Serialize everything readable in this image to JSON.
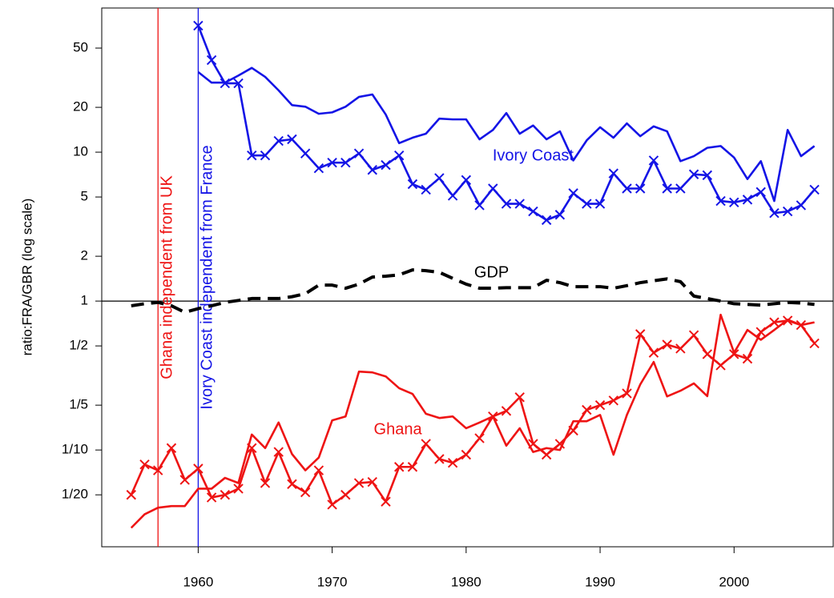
{
  "chart_data": {
    "type": "line",
    "y_label": "ratio:FRA/GBR (log scale)",
    "log_y": true,
    "x": [
      1955,
      1956,
      1957,
      1958,
      1959,
      1960,
      1961,
      1962,
      1963,
      1964,
      1965,
      1966,
      1967,
      1968,
      1969,
      1970,
      1971,
      1972,
      1973,
      1974,
      1975,
      1976,
      1977,
      1978,
      1979,
      1980,
      1981,
      1982,
      1983,
      1984,
      1985,
      1986,
      1987,
      1988,
      1989,
      1990,
      1991,
      1992,
      1993,
      1994,
      1995,
      1996,
      1997,
      1998,
      1999,
      2000,
      2001,
      2002,
      2003,
      2004,
      2005,
      2006
    ],
    "series": [
      {
        "color": "#1414e6",
        "marker": "x",
        "line_style": "solid",
        "values": [
          null,
          null,
          null,
          null,
          null,
          70.7,
          41.5,
          29,
          29,
          9.5,
          9.5,
          11.9,
          12.2,
          9.8,
          7.8,
          8.5,
          8.5,
          9.8,
          7.6,
          8.2,
          9.5,
          6.1,
          5.6,
          6.7,
          5.1,
          6.5,
          4.4,
          5.7,
          4.5,
          4.5,
          4.0,
          3.5,
          3.8,
          5.3,
          4.5,
          4.5,
          7.2,
          5.7,
          5.7,
          8.8,
          5.7,
          5.7,
          7.1,
          7.0,
          4.7,
          4.6,
          4.8,
          5.4,
          3.9,
          4.0,
          4.4,
          5.6
        ]
      },
      {
        "color": "#1414e6",
        "marker": "none",
        "line_style": "solid",
        "values": [
          null,
          null,
          null,
          null,
          null,
          34.5,
          29.3,
          29.3,
          32.7,
          36.8,
          32,
          26,
          20.7,
          20.2,
          18.1,
          18.5,
          20.2,
          23.5,
          24.4,
          17.9,
          11.5,
          12.5,
          13.3,
          16.8,
          16.6,
          16.6,
          12.2,
          14.1,
          18.3,
          13.3,
          15.1,
          12.2,
          13.8,
          8.8,
          12,
          14.7,
          12.5,
          15.6,
          12.8,
          14.9,
          13.8,
          8.7,
          9.4,
          10.7,
          11,
          9.2,
          6.6,
          8.7,
          4.7,
          14.1,
          9.4,
          11
        ]
      },
      {
        "color": "#000000",
        "marker": "none",
        "line_style": "dashed",
        "values": [
          0.93,
          0.96,
          0.98,
          0.93,
          0.84,
          0.89,
          0.93,
          0.98,
          1.01,
          1.04,
          1.04,
          1.04,
          1.07,
          1.12,
          1.28,
          1.28,
          1.22,
          1.3,
          1.45,
          1.47,
          1.5,
          1.62,
          1.6,
          1.56,
          1.42,
          1.3,
          1.22,
          1.22,
          1.23,
          1.23,
          1.23,
          1.38,
          1.33,
          1.25,
          1.25,
          1.25,
          1.22,
          1.27,
          1.33,
          1.37,
          1.41,
          1.35,
          1.08,
          1.04,
          1.0,
          0.96,
          0.95,
          0.94,
          0.96,
          0.98,
          0.97,
          0.95
        ]
      },
      {
        "color": "#ee1414",
        "marker": "x",
        "line_style": "solid",
        "values": [
          0.05,
          0.08,
          0.073,
          0.103,
          0.063,
          0.075,
          0.048,
          0.05,
          0.055,
          0.103,
          0.06,
          0.097,
          0.059,
          0.052,
          0.073,
          0.043,
          0.05,
          0.06,
          0.061,
          0.045,
          0.077,
          0.077,
          0.11,
          0.087,
          0.082,
          0.093,
          0.12,
          0.168,
          0.183,
          0.226,
          0.11,
          0.093,
          0.11,
          0.135,
          0.186,
          0.2,
          0.215,
          0.24,
          0.6,
          0.45,
          0.51,
          0.48,
          0.59,
          0.44,
          0.37,
          0.44,
          0.41,
          0.62,
          0.72,
          0.74,
          0.69,
          0.52
        ]
      },
      {
        "color": "#ee1414",
        "marker": "none",
        "line_style": "solid",
        "values": [
          0.03,
          0.037,
          0.041,
          0.042,
          0.042,
          0.055,
          0.055,
          0.065,
          0.06,
          0.127,
          0.103,
          0.153,
          0.094,
          0.073,
          0.089,
          0.158,
          0.168,
          0.336,
          0.332,
          0.312,
          0.26,
          0.238,
          0.175,
          0.164,
          0.168,
          0.14,
          0.153,
          0.168,
          0.107,
          0.14,
          0.097,
          0.103,
          0.1,
          0.156,
          0.156,
          0.172,
          0.093,
          0.172,
          0.276,
          0.39,
          0.229,
          0.25,
          0.28,
          0.23,
          0.81,
          0.45,
          0.64,
          0.55,
          0.64,
          0.75,
          0.69,
          0.72
        ]
      }
    ],
    "annotations": [
      {
        "text": "Ivory Coast",
        "x": 1985,
        "y": 9.4,
        "color": "#1414e6"
      },
      {
        "text": "Ghana",
        "x": 1974.9,
        "y": 0.136,
        "color": "#ee1414"
      },
      {
        "text": "GDP",
        "x": 1981.9,
        "y": 1.54,
        "color": "#000000"
      }
    ],
    "vlines": [
      {
        "x": 1957,
        "label": "Ghana independent from UK",
        "color": "#ee1414"
      },
      {
        "x": 1960,
        "label": "Ivory Coast independent from France",
        "color": "#1414e6"
      }
    ],
    "hline": 1,
    "xlim": [
      1952.8,
      2007.4
    ],
    "ylim": [
      0.0224,
      92.9
    ],
    "xticks": [
      1960,
      1970,
      1980,
      1990,
      2000
    ],
    "yticks": [
      50,
      20,
      10,
      5,
      2,
      1,
      {
        "value": 0.5,
        "label": "1/2"
      },
      {
        "value": 0.2,
        "label": "1/5"
      },
      {
        "value": 0.1,
        "label": "1/10"
      },
      {
        "value": 0.05,
        "label": "1/20"
      }
    ]
  }
}
